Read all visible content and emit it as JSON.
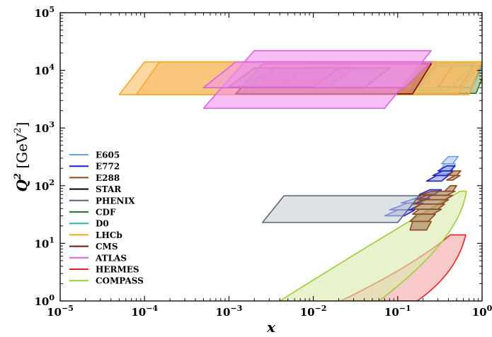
{
  "chart_data": {
    "type": "area",
    "xscale": "log",
    "yscale": "log",
    "xlim": [
      1e-05,
      1
    ],
    "ylim": [
      1,
      100000
    ],
    "x_ticks": [
      {
        "value": 1e-05,
        "base": "10",
        "exp": "−5"
      },
      {
        "value": 0.0001,
        "base": "10",
        "exp": "−4"
      },
      {
        "value": 0.001,
        "base": "10",
        "exp": "−3"
      },
      {
        "value": 0.01,
        "base": "10",
        "exp": "−2"
      },
      {
        "value": 0.1,
        "base": "10",
        "exp": "−1"
      },
      {
        "value": 1,
        "base": "10",
        "exp": "0"
      }
    ],
    "y_ticks": [
      {
        "value": 1,
        "base": "10",
        "exp": "0"
      },
      {
        "value": 10,
        "base": "10",
        "exp": "1"
      },
      {
        "value": 100,
        "base": "10",
        "exp": "2"
      },
      {
        "value": 1000,
        "base": "10",
        "exp": "3"
      },
      {
        "value": 10000,
        "base": "10",
        "exp": "4"
      },
      {
        "value": 100000,
        "base": "10",
        "exp": "5"
      }
    ],
    "xlabel": "x",
    "ylabel": {
      "main": "Q",
      "sup": "2",
      "unit_open": " [GeV",
      "unit_sup": "2",
      "unit_close": "]"
    },
    "legend_position": "center-left",
    "grid": false,
    "series": [
      {
        "name": "E605",
        "color": "#6a9fe0",
        "fill": "#aec9ee",
        "regions": [
          {
            "x": [
              [
                0.33,
                0.4
              ],
              [
                0.45,
                0.52
              ]
            ],
            "q2": [
              240,
              320
            ]
          },
          {
            "x": [
              [
                0.3,
                0.36
              ],
              [
                0.42,
                0.48
              ]
            ],
            "q2": [
              160,
              240
            ]
          }
        ]
      },
      {
        "name": "E772",
        "color": "#1a22c6",
        "fill": "#8f9ae0",
        "regions": [
          {
            "x": [
              [
                0.3,
                0.38
              ],
              [
                0.42,
                0.48
              ]
            ],
            "q2": [
              180,
              220
            ]
          },
          {
            "x": [
              [
                0.26,
                0.34
              ],
              [
                0.38,
                0.46
              ]
            ],
            "q2": [
              150,
              180
            ]
          },
          {
            "x": [
              [
                0.22,
                0.29
              ],
              [
                0.33,
                0.4
              ]
            ],
            "q2": [
              120,
              150
            ]
          },
          {
            "x": [
              [
                0.18,
                0.24
              ],
              [
                0.27,
                0.33
              ]
            ],
            "q2": [
              70,
              85
            ]
          },
          {
            "x": [
              [
                0.16,
                0.2
              ],
              [
                0.22,
                0.26
              ]
            ],
            "q2": [
              60,
              70
            ]
          },
          {
            "x": [
              [
                0.11,
                0.16
              ],
              [
                0.17,
                0.24
              ]
            ],
            "q2": [
              50,
              60
            ]
          },
          {
            "x": [
              [
                0.08,
                0.13
              ],
              [
                0.14,
                0.2
              ]
            ],
            "q2": [
              38,
              50
            ]
          },
          {
            "x": [
              [
                0.07,
                0.1
              ],
              [
                0.12,
                0.16
              ]
            ],
            "q2": [
              30,
              38
            ]
          }
        ]
      },
      {
        "name": "E288",
        "color": "#8c4a22",
        "fill": "#a5784e",
        "regions": [
          {
            "x": [
              [
                0.38,
                0.48
              ],
              [
                0.45,
                0.55
              ]
            ],
            "q2": [
              125,
              150
            ]
          },
          {
            "x": [
              [
                0.4,
                0.46
              ],
              [
                0.5,
                0.56
              ]
            ],
            "q2": [
              150,
              180
            ]
          },
          {
            "x": [
              [
                0.36,
                0.42
              ],
              [
                0.45,
                0.5
              ]
            ],
            "q2": [
              80,
              100
            ]
          },
          {
            "x": [
              [
                0.18,
                0.25
              ],
              [
                0.38,
                0.48
              ]
            ],
            "q2": [
              68,
              80
            ]
          },
          {
            "x": [
              [
                0.16,
                0.22
              ],
              [
                0.36,
                0.45
              ]
            ],
            "q2": [
              57,
              68
            ]
          },
          {
            "x": [
              [
                0.15,
                0.2
              ],
              [
                0.33,
                0.4
              ]
            ],
            "q2": [
              48,
              57
            ]
          },
          {
            "x": [
              [
                0.15,
                0.19
              ],
              [
                0.3,
                0.36
              ]
            ],
            "q2": [
              39,
              48
            ]
          },
          {
            "x": [
              [
                0.15,
                0.18
              ],
              [
                0.26,
                0.33
              ]
            ],
            "q2": [
              32,
              39
            ]
          },
          {
            "x": [
              [
                0.14,
                0.17
              ],
              [
                0.23,
                0.28
              ]
            ],
            "q2": [
              24,
              32
            ]
          },
          {
            "x": [
              [
                0.14,
                0.15
              ],
              [
                0.22,
                0.25
              ]
            ],
            "q2": [
              17,
              24
            ]
          }
        ]
      },
      {
        "name": "STAR",
        "color": "#000000",
        "fill": "none",
        "regions": [
          {
            "x": [
              [
                0.0015,
                0.003
              ],
              [
                0.15,
                0.3
              ]
            ],
            "q2": [
              4000,
              14000
            ]
          },
          {
            "x": [
              [
                0.3,
                0.45
              ],
              [
                0.55,
                0.8
              ]
            ],
            "q2": [
              5200,
              12000
            ]
          }
        ]
      },
      {
        "name": "PHENIX",
        "color": "#55647c",
        "fill": "#c7ced6",
        "regions": [
          {
            "x": [
              [
                0.0025,
                0.0045
              ],
              [
                0.1,
                0.18
              ]
            ],
            "q2": [
              23,
              67
            ]
          }
        ]
      },
      {
        "name": "CDF",
        "color": "#227a22",
        "fill": "#8ea56d",
        "regions": [
          {
            "x": [
              [
                0.14,
                0.2
              ],
              [
                0.85,
                1.2
              ]
            ],
            "q2": [
              4000,
              14000
            ]
          }
        ]
      },
      {
        "name": "D0",
        "color": "#2fb3b3",
        "fill": "none",
        "regions": [
          {
            "x": [
              [
                0.01,
                0.02
              ],
              [
                0.4,
                0.8
              ]
            ],
            "q2": [
              4500,
              13000
            ]
          },
          {
            "x": [
              [
                0.18,
                0.3
              ],
              [
                0.75,
                1.0
              ]
            ],
            "q2": [
              5000,
              12000
            ]
          }
        ]
      },
      {
        "name": "LHCb",
        "color": "#f5a52a",
        "fill": "#f8bd62",
        "regions": [
          {
            "x": [
              [
                5e-05,
                0.0001
              ],
              [
                0.5,
                1.0
              ]
            ],
            "q2": [
              3800,
              14000
            ]
          },
          {
            "x": [
              [
                8e-05,
                0.00015
              ],
              [
                0.7,
                1.0
              ]
            ],
            "q2": [
              3800,
              14000
            ]
          }
        ]
      },
      {
        "name": "CMS",
        "color": "#7a0d0d",
        "fill": "#c06060",
        "regions": [
          {
            "x": [
              [
                0.0012,
                0.0025
              ],
              [
                0.15,
                0.25
              ]
            ],
            "q2": [
              3900,
              13000
            ]
          },
          {
            "x": [
              [
                0.0015,
                0.0035
              ],
              [
                0.015,
                0.03
              ]
            ],
            "q2": [
              5000,
              11000
            ]
          },
          {
            "x": [
              [
                0.004,
                0.008
              ],
              [
                0.04,
                0.08
              ]
            ],
            "q2": [
              5000,
              11000
            ]
          },
          {
            "x": [
              [
                0.001,
                0.002
              ],
              [
                0.01,
                0.02
              ]
            ],
            "q2": [
              5200,
              11000
            ]
          }
        ]
      },
      {
        "name": "ATLAS",
        "color": "#e05fe0",
        "fill": "#ef93ef",
        "regions": [
          {
            "x": [
              [
                0.0005,
                0.002
              ],
              [
                0.07,
                0.25
              ]
            ],
            "q2": [
              2200,
              22000
            ]
          },
          {
            "x": [
              [
                0.0005,
                0.0012
              ],
              [
                0.12,
                0.25
              ]
            ],
            "q2": [
              5000,
              14000
            ]
          }
        ]
      },
      {
        "name": "HERMES",
        "color": "#e82222",
        "fill": "#f2a6a6",
        "curved": true,
        "regions": [
          {
            "x": [
              [
                0.021,
                0.04
              ],
              [
                0.64,
                0.6
              ]
            ],
            "q2": [
              1,
              14
            ]
          }
        ]
      },
      {
        "name": "COMPASS",
        "color": "#9acd32",
        "fill": "#d8ebae",
        "curved": true,
        "regions": [
          {
            "x": [
              [
                0.004,
                0.06
              ],
              [
                0.65,
                0.6
              ]
            ],
            "q2": [
              1,
              80
            ]
          }
        ]
      }
    ]
  }
}
